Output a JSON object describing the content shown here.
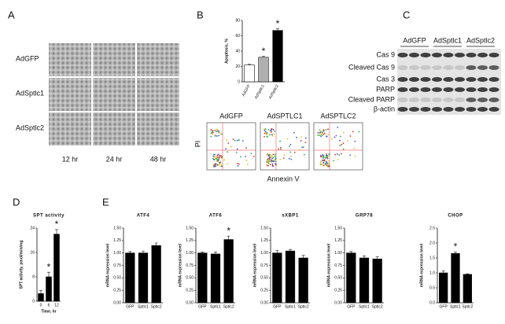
{
  "panel_labels": [
    "A",
    "B",
    "C",
    "D",
    "E"
  ],
  "panel_a": {
    "rows": [
      "AdGFP",
      "AdSptlc1",
      "AdSptlc2"
    ],
    "columns": [
      "12 hr",
      "24 hr",
      "48 hr"
    ]
  },
  "flow": {
    "columns": [
      "AdGFP",
      "AdSPTLC1",
      "AdSPTLC2"
    ],
    "x_label": "Annexin V",
    "y_label": "PI"
  },
  "panel_c": {
    "columns": [
      "AdGFP",
      "AdSptlc1",
      "AdSptlc2"
    ],
    "rows": [
      "Cas 9",
      "Cleaved Cas 9",
      "Cas 3",
      "PARP",
      "Cleaved PARP",
      "β-actin"
    ]
  },
  "chart_data": [
    {
      "type": "bar",
      "y_label": "Apoptosis, %",
      "categories": [
        "AdGFP",
        "AdSptlc1",
        "AdSptlc2"
      ],
      "values": [
        22,
        32,
        67
      ],
      "errors": [
        0.8,
        1.2,
        2
      ],
      "colors": [
        "#ffffff",
        "#b0b0b0",
        "#000000"
      ],
      "ylim": [
        0,
        80
      ],
      "yticks": [
        0,
        20,
        40,
        60,
        80
      ],
      "marker": "*",
      "significant": [
        false,
        true,
        true
      ]
    },
    {
      "type": "bar",
      "title": "SPT activity",
      "y_label": "SPT activity, pmol/min/mg",
      "x_label": "Time, hr",
      "categories": [
        "0",
        "6",
        "12"
      ],
      "values": [
        2.5,
        8,
        22
      ],
      "errors": [
        1,
        1.5,
        1.5
      ],
      "color": "#000000",
      "ylim": [
        0,
        24
      ],
      "yticks": [
        0,
        8,
        16,
        24
      ],
      "marker": "*",
      "significant": [
        false,
        true,
        true
      ]
    },
    {
      "type": "bar",
      "title": "ATF4",
      "y_label": "mRNA expression level",
      "categories": [
        "GFP",
        "Sptlc1",
        "Sptlc2"
      ],
      "values": [
        1.0,
        1.0,
        1.15
      ],
      "errors": [
        0.03,
        0.04,
        0.05
      ],
      "color": "#000000",
      "ylim": [
        0,
        1.5
      ],
      "yticks": [
        {
          "value": 0,
          "label": "0.00"
        },
        {
          "value": 0.25,
          "label": "0.25"
        },
        {
          "value": 0.5,
          "label": "0.50"
        },
        {
          "value": 0.75,
          "label": "0.75"
        },
        {
          "value": 1,
          "label": "1.00"
        },
        {
          "value": 1.25,
          "label": "1.25"
        },
        {
          "value": 1.5,
          "label": "1.50"
        }
      ],
      "marker": "*",
      "significant": [
        false,
        false,
        false
      ]
    },
    {
      "type": "bar",
      "title": "ATF6",
      "y_label": "mRNA expression level",
      "categories": [
        "GFP",
        "Sptlc1",
        "Sptlc2"
      ],
      "values": [
        1.0,
        0.98,
        1.27
      ],
      "errors": [
        0.02,
        0.04,
        0.07
      ],
      "color": "#000000",
      "ylim": [
        0,
        1.5
      ],
      "yticks": [
        {
          "value": 0,
          "label": "0.00"
        },
        {
          "value": 0.25,
          "label": "0.25"
        },
        {
          "value": 0.5,
          "label": "0.50"
        },
        {
          "value": 0.75,
          "label": "0.75"
        },
        {
          "value": 1,
          "label": "1.00"
        },
        {
          "value": 1.25,
          "label": "1.25"
        },
        {
          "value": 1.5,
          "label": "1.50"
        }
      ],
      "marker": "*",
      "significant": [
        false,
        false,
        true
      ]
    },
    {
      "type": "bar",
      "title": "sXBP1",
      "y_label": "mRNA expression level",
      "categories": [
        "GFP",
        "Sptlc1",
        "Sptlc2"
      ],
      "values": [
        1.0,
        1.04,
        0.9
      ],
      "errors": [
        0.05,
        0.03,
        0.05
      ],
      "color": "#000000",
      "ylim": [
        0,
        1.5
      ],
      "yticks": [
        {
          "value": 0,
          "label": "0.00"
        },
        {
          "value": 0.25,
          "label": "0.25"
        },
        {
          "value": 0.5,
          "label": "0.50"
        },
        {
          "value": 0.75,
          "label": "0.75"
        },
        {
          "value": 1,
          "label": "1.00"
        },
        {
          "value": 1.25,
          "label": "1.25"
        },
        {
          "value": 1.5,
          "label": "1.50"
        }
      ],
      "marker": "*",
      "significant": [
        false,
        false,
        false
      ]
    },
    {
      "type": "bar",
      "title": "GRP78",
      "y_label": "mRNA expression level",
      "categories": [
        "GFP",
        "Sptlc1",
        "Sptlc2"
      ],
      "values": [
        1.0,
        0.9,
        0.88
      ],
      "errors": [
        0.03,
        0.04,
        0.04
      ],
      "color": "#000000",
      "ylim": [
        0,
        1.5
      ],
      "yticks": [
        {
          "value": 0,
          "label": "0.00"
        },
        {
          "value": 0.25,
          "label": "0.25"
        },
        {
          "value": 0.5,
          "label": "0.50"
        },
        {
          "value": 0.75,
          "label": "0.75"
        },
        {
          "value": 1,
          "label": "1.00"
        },
        {
          "value": 1.25,
          "label": "1.25"
        },
        {
          "value": 1.5,
          "label": "1.50"
        }
      ],
      "marker": "*",
      "significant": [
        false,
        false,
        false
      ]
    },
    {
      "type": "bar",
      "title": "CHOP",
      "y_label": "mRNA expression level",
      "categories": [
        "GFP",
        "Sptlc1",
        "Sptlc2"
      ],
      "values": [
        1.0,
        1.65,
        0.95
      ],
      "errors": [
        0.06,
        0.05,
        0.02
      ],
      "color": "#000000",
      "ylim": [
        0,
        2.5
      ],
      "yticks": [
        {
          "value": 0,
          "label": "0.0"
        },
        {
          "value": 0.5,
          "label": "0.5"
        },
        {
          "value": 1,
          "label": "1.0"
        },
        {
          "value": 1.5,
          "label": "1.5"
        },
        {
          "value": 2,
          "label": "2.0"
        },
        {
          "value": 2.5,
          "label": "2.5"
        }
      ],
      "marker": "*",
      "significant": [
        false,
        true,
        false
      ]
    }
  ]
}
